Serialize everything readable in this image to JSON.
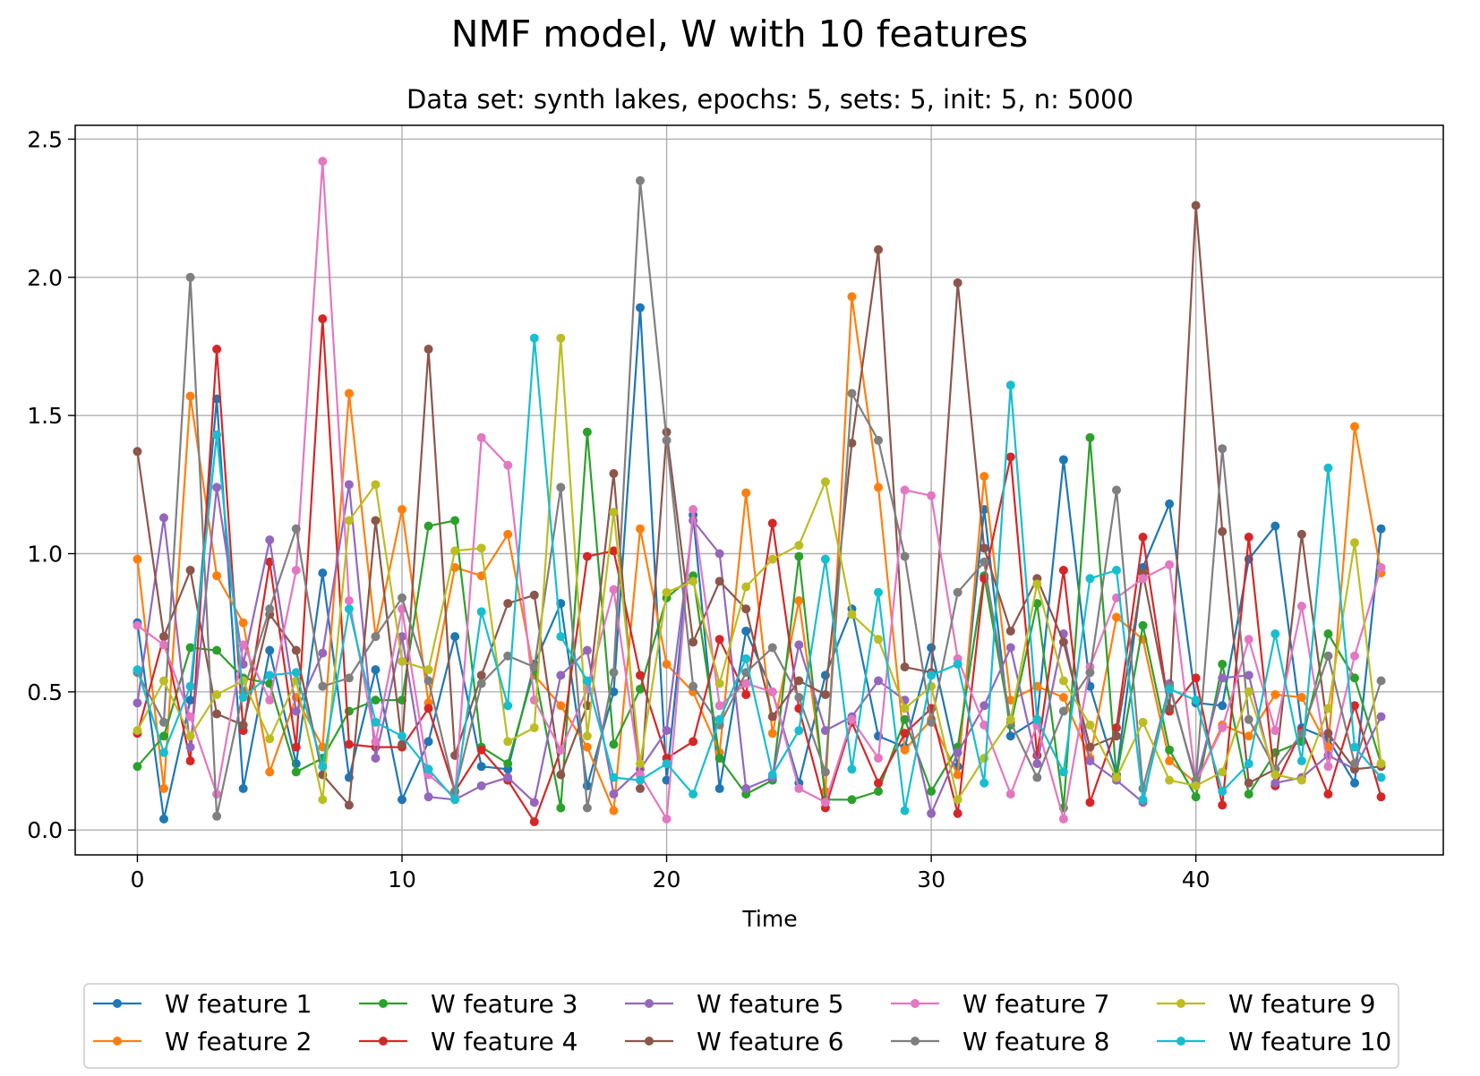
{
  "chart_data": {
    "type": "line",
    "title": "NMF model, W with 10 features",
    "subtitle": "Data set: synth lakes, epochs: 5, sets: 5, init: 5, n: 5000",
    "xlabel": "Time",
    "ylabel": "",
    "xlim": [
      -2.35,
      49.35
    ],
    "ylim": [
      -0.09,
      2.55
    ],
    "xticks": [
      0,
      10,
      20,
      30,
      40
    ],
    "yticks": [
      0.0,
      0.5,
      1.0,
      1.5,
      2.0,
      2.5
    ],
    "grid": true,
    "legend_position": "bottom-center",
    "x": [
      0,
      1,
      2,
      3,
      4,
      5,
      6,
      7,
      8,
      9,
      10,
      11,
      12,
      13,
      14,
      15,
      16,
      17,
      18,
      19,
      20,
      21,
      22,
      23,
      24,
      25,
      26,
      27,
      28,
      29,
      30,
      31,
      32,
      33,
      34,
      35,
      36,
      37,
      38,
      39,
      40,
      41,
      42,
      43,
      44,
      45,
      46,
      47
    ],
    "series": [
      {
        "name": "W feature 1",
        "color": "#1f77b4",
        "values": [
          0.75,
          0.04,
          0.47,
          1.56,
          0.15,
          0.65,
          0.24,
          0.93,
          0.19,
          0.58,
          0.11,
          0.32,
          0.7,
          0.23,
          0.22,
          0.6,
          0.82,
          0.16,
          0.5,
          1.89,
          0.18,
          1.14,
          0.15,
          0.72,
          0.5,
          0.17,
          0.56,
          0.8,
          0.34,
          0.3,
          0.66,
          0.23,
          1.16,
          0.34,
          0.4,
          1.34,
          0.52,
          0.2,
          0.95,
          1.18,
          0.46,
          0.45,
          0.98,
          1.1,
          0.37,
          0.33,
          0.17,
          1.09
        ]
      },
      {
        "name": "W feature 2",
        "color": "#ff7f0e",
        "values": [
          0.98,
          0.15,
          1.57,
          0.92,
          0.75,
          0.21,
          0.48,
          0.3,
          1.58,
          0.7,
          1.16,
          0.46,
          0.95,
          0.92,
          1.07,
          0.56,
          0.45,
          0.3,
          0.07,
          1.09,
          0.6,
          0.5,
          0.28,
          1.22,
          0.35,
          0.83,
          0.14,
          1.93,
          1.24,
          0.29,
          0.4,
          0.2,
          1.28,
          0.47,
          0.52,
          0.48,
          0.26,
          0.77,
          0.69,
          0.25,
          0.17,
          0.38,
          0.34,
          0.49,
          0.48,
          0.3,
          1.46,
          0.93
        ]
      },
      {
        "name": "W feature 3",
        "color": "#2ca02c",
        "values": [
          0.23,
          0.34,
          0.66,
          0.65,
          0.55,
          0.53,
          0.21,
          0.26,
          0.43,
          0.47,
          0.47,
          1.1,
          1.12,
          0.3,
          0.24,
          0.58,
          0.08,
          1.44,
          0.31,
          0.51,
          0.84,
          0.92,
          0.26,
          0.13,
          0.18,
          0.99,
          0.11,
          0.11,
          0.14,
          0.4,
          0.14,
          0.3,
          0.92,
          0.38,
          0.82,
          0.08,
          1.42,
          0.19,
          0.74,
          0.29,
          0.12,
          0.6,
          0.13,
          0.28,
          0.32,
          0.71,
          0.55,
          0.24
        ]
      },
      {
        "name": "W feature 4",
        "color": "#d62728",
        "values": [
          0.35,
          0.7,
          0.25,
          1.74,
          0.36,
          0.97,
          0.3,
          1.85,
          0.31,
          0.3,
          0.3,
          0.44,
          0.14,
          0.29,
          0.18,
          0.03,
          0.29,
          0.99,
          1.01,
          0.56,
          0.26,
          0.32,
          0.69,
          0.49,
          1.11,
          0.44,
          0.08,
          0.39,
          0.17,
          0.35,
          0.44,
          0.06,
          0.91,
          1.35,
          0.27,
          0.94,
          0.1,
          0.37,
          1.06,
          0.43,
          0.55,
          0.09,
          1.06,
          0.16,
          0.36,
          0.13,
          0.45,
          0.12
        ]
      },
      {
        "name": "W feature 5",
        "color": "#9467bd",
        "values": [
          0.46,
          1.13,
          0.3,
          1.24,
          0.6,
          1.05,
          0.43,
          0.64,
          1.25,
          0.26,
          0.7,
          0.12,
          0.11,
          0.16,
          0.19,
          0.1,
          0.56,
          0.65,
          0.13,
          0.22,
          0.36,
          1.12,
          1.0,
          0.15,
          0.19,
          0.67,
          0.36,
          0.41,
          0.54,
          0.47,
          0.06,
          0.28,
          0.45,
          0.66,
          0.24,
          0.71,
          0.25,
          0.18,
          0.1,
          0.53,
          0.17,
          0.55,
          0.56,
          0.17,
          0.19,
          0.27,
          0.22,
          0.41
        ]
      },
      {
        "name": "W feature 6",
        "color": "#8c564b",
        "values": [
          1.37,
          0.7,
          0.94,
          0.42,
          0.38,
          0.78,
          0.65,
          0.2,
          0.09,
          1.12,
          0.31,
          1.74,
          0.27,
          0.56,
          0.82,
          0.85,
          0.2,
          0.45,
          1.29,
          0.15,
          1.44,
          0.68,
          0.9,
          0.8,
          0.41,
          0.54,
          0.49,
          1.4,
          2.1,
          0.59,
          0.57,
          1.98,
          1.02,
          0.72,
          0.91,
          0.68,
          0.3,
          0.34,
          0.93,
          0.44,
          2.26,
          1.08,
          0.17,
          0.22,
          1.07,
          0.35,
          0.22,
          0.23
        ]
      },
      {
        "name": "W feature 7",
        "color": "#e377c2",
        "values": [
          0.74,
          0.67,
          0.41,
          0.13,
          0.67,
          0.47,
          0.94,
          2.42,
          0.83,
          0.32,
          0.8,
          0.2,
          0.12,
          1.42,
          1.32,
          0.47,
          0.29,
          0.51,
          0.87,
          0.2,
          0.04,
          1.16,
          0.45,
          0.53,
          0.5,
          0.15,
          0.1,
          0.4,
          0.26,
          1.23,
          1.21,
          0.62,
          0.38,
          0.13,
          0.38,
          0.04,
          0.59,
          0.84,
          0.91,
          0.96,
          0.17,
          0.37,
          0.69,
          0.36,
          0.81,
          0.23,
          0.63,
          0.95
        ]
      },
      {
        "name": "W feature 8",
        "color": "#7f7f7f",
        "values": [
          0.57,
          0.39,
          2.0,
          0.05,
          0.5,
          0.8,
          1.09,
          0.52,
          0.55,
          0.7,
          0.84,
          0.54,
          0.14,
          0.53,
          0.63,
          0.59,
          1.24,
          0.08,
          0.57,
          2.35,
          1.41,
          0.52,
          0.38,
          0.57,
          0.66,
          0.48,
          0.21,
          1.58,
          1.41,
          0.99,
          0.39,
          0.86,
          0.97,
          0.39,
          0.19,
          0.43,
          0.57,
          1.23,
          0.15,
          0.52,
          0.18,
          1.38,
          0.4,
          0.22,
          0.35,
          0.63,
          0.24,
          0.54
        ]
      },
      {
        "name": "W feature 9",
        "color": "#bcbd22",
        "values": [
          0.36,
          0.54,
          0.34,
          0.49,
          0.54,
          0.33,
          0.54,
          0.11,
          1.12,
          1.25,
          0.61,
          0.58,
          1.01,
          1.02,
          0.32,
          0.37,
          1.78,
          0.34,
          1.15,
          0.24,
          0.86,
          0.9,
          0.53,
          0.88,
          0.98,
          1.03,
          1.26,
          0.78,
          0.69,
          0.44,
          0.52,
          0.11,
          0.26,
          0.4,
          0.89,
          0.54,
          0.38,
          0.19,
          0.39,
          0.18,
          0.16,
          0.21,
          0.5,
          0.2,
          0.18,
          0.44,
          1.04,
          0.24
        ]
      },
      {
        "name": "W feature 10",
        "color": "#17becf",
        "values": [
          0.58,
          0.28,
          0.52,
          1.43,
          0.48,
          0.56,
          0.57,
          0.23,
          0.8,
          0.39,
          0.34,
          0.22,
          0.11,
          0.79,
          0.45,
          1.78,
          0.7,
          0.54,
          0.19,
          0.18,
          0.24,
          0.13,
          0.4,
          0.62,
          0.2,
          0.36,
          0.98,
          0.22,
          0.86,
          0.07,
          0.56,
          0.6,
          0.17,
          1.61,
          0.4,
          0.21,
          0.91,
          0.94,
          0.11,
          0.51,
          0.47,
          0.14,
          0.24,
          0.71,
          0.25,
          1.31,
          0.3,
          0.19
        ]
      }
    ]
  }
}
